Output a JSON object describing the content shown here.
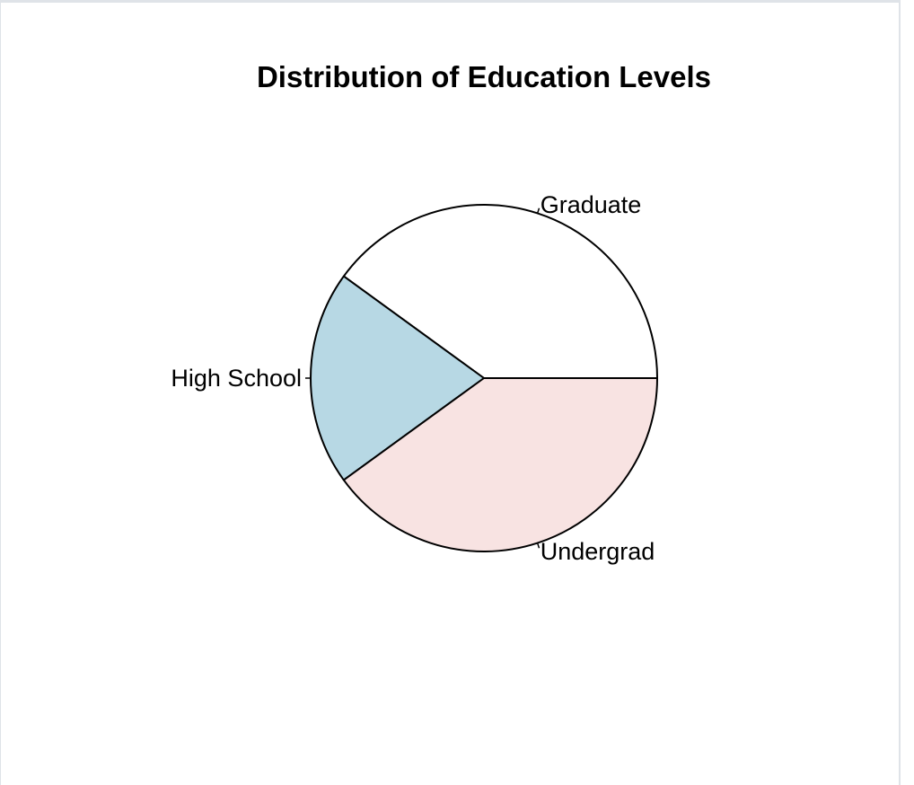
{
  "chart_data": {
    "type": "pie",
    "title": "Distribution of Education Levels",
    "categories": [
      "Graduate",
      "High School",
      "Undergrad"
    ],
    "values": [
      40,
      20,
      40
    ],
    "colors": [
      "#ffffff",
      "#b7d8e4",
      "#f8e3e2"
    ],
    "start_angle_deg": 0,
    "direction": "counterclockwise",
    "border_color": "#000000",
    "legend": "none"
  }
}
